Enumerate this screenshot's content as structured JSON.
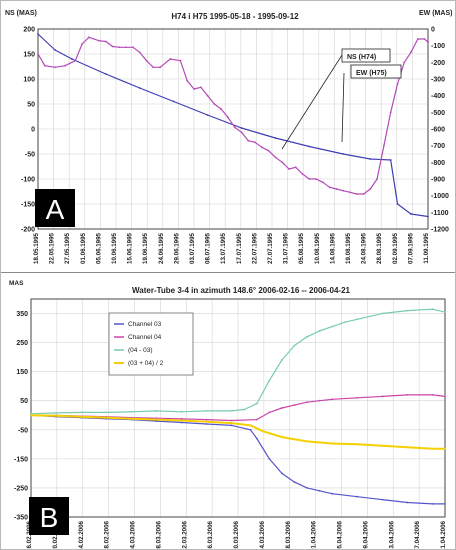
{
  "chart_data": [
    {
      "type": "line",
      "panel_label": "A",
      "title": "H74 i H75    1995-05-18 - 1995-09-12",
      "y_label": "NS (MAS)",
      "y2_label": "EW (MAS)",
      "ylim": [
        -200,
        200
      ],
      "y2lim": [
        -1200,
        0
      ],
      "y_ticks": [
        -200,
        -150,
        -100,
        -50,
        0,
        50,
        100,
        150,
        200
      ],
      "y2_ticks": [
        -1200,
        -1100,
        -1000,
        -900,
        -800,
        -700,
        -600,
        -500,
        -400,
        -300,
        -200,
        -100,
        0
      ],
      "x_ticks": [
        "18.05.1995",
        "22.05.1995",
        "27.05.1995",
        "01.06.1995",
        "05.06.1995",
        "10.06.1995",
        "15.06.1995",
        "19.06.1995",
        "24.06.1995",
        "29.06.1995",
        "03.07.1995",
        "08.07.1995",
        "13.07.1995",
        "17.07.1995",
        "22.07.1995",
        "27.07.1995",
        "31.07.1995",
        "05.08.1995",
        "10.08.1995",
        "14.08.1995",
        "19.08.1995",
        "24.08.1995",
        "28.08.1995",
        "02.09.1995",
        "07.09.1995",
        "11.09.1995"
      ],
      "grid": true,
      "series": [
        {
          "name": "NS (H74)",
          "axis": "left",
          "color": "#3f3fb4",
          "x": [
            0,
            5,
            10,
            20,
            30,
            40,
            50,
            60,
            70,
            80,
            90,
            98,
            104,
            106,
            110,
            115
          ],
          "y": [
            190,
            158,
            140,
            110,
            82,
            55,
            28,
            2,
            -18,
            -35,
            -50,
            -60,
            -62,
            -150,
            -170,
            -175
          ]
        },
        {
          "name": "EW (H75)",
          "axis": "right",
          "color": "#b54ab8",
          "x": [
            0,
            2,
            5,
            8,
            11,
            13,
            15,
            18,
            20,
            22,
            24,
            26,
            28,
            30,
            32,
            34,
            36,
            39,
            42,
            44,
            46,
            48,
            50,
            52,
            54,
            56,
            58,
            60,
            62,
            64,
            66,
            68,
            70,
            72,
            74,
            76,
            78,
            80,
            82,
            84,
            86,
            88,
            90,
            92,
            94,
            96,
            98,
            100,
            102,
            104,
            106,
            108,
            110,
            112,
            114,
            115
          ],
          "y": [
            -150,
            -220,
            -230,
            -220,
            -190,
            -90,
            -50,
            -70,
            -75,
            -105,
            -110,
            -110,
            -110,
            -140,
            -190,
            -230,
            -230,
            -180,
            -190,
            -310,
            -360,
            -350,
            -400,
            -450,
            -480,
            -530,
            -590,
            -620,
            -670,
            -680,
            -710,
            -730,
            -770,
            -800,
            -840,
            -830,
            -870,
            -900,
            -900,
            -920,
            -950,
            -960,
            -970,
            -980,
            -990,
            -990,
            -960,
            -900,
            -700,
            -500,
            -330,
            -200,
            -140,
            -60,
            -60,
            -80
          ]
        }
      ],
      "annotations": [
        "NS (H74)",
        "EW (H75)"
      ]
    },
    {
      "type": "line",
      "panel_label": "B",
      "title": "Water-Tube 3-4 in azimuth 148.6°        2006-02-16 -- 2006-04-21",
      "y_label": "MAS",
      "ylim": [
        -350,
        400
      ],
      "y_ticks": [
        -350,
        -250,
        -150,
        -50,
        50,
        150,
        250,
        350
      ],
      "x_ticks": [
        "16.02.2006",
        "20.02.2006",
        "24.02.2006",
        "28.02.2006",
        "04.03.2006",
        "08.03.2006",
        "12.03.2006",
        "16.03.2006",
        "20.03.2006",
        "24.03.2006",
        "28.03.2006",
        "01.04.2006",
        "05.04.2006",
        "09.04.2006",
        "13.04.2006",
        "17.04.2006",
        "21.04.2006"
      ],
      "grid": true,
      "legend_position": "upper-left",
      "series": [
        {
          "name": "Channel 03",
          "color": "#5555cc",
          "x": [
            0,
            4,
            8,
            12,
            16,
            20,
            24,
            28,
            32,
            35,
            36,
            38,
            40,
            42,
            44,
            46,
            48,
            52,
            56,
            60,
            64,
            66
          ],
          "y": [
            0,
            -5,
            -8,
            -12,
            -15,
            -20,
            -25,
            -30,
            -35,
            -50,
            -80,
            -150,
            -200,
            -230,
            -250,
            -260,
            -270,
            -280,
            -290,
            -300,
            -305,
            -305
          ]
        },
        {
          "name": "Channel 04",
          "color": "#cc44aa",
          "x": [
            0,
            4,
            8,
            12,
            16,
            20,
            24,
            28,
            32,
            36,
            38,
            40,
            42,
            44,
            46,
            48,
            52,
            56,
            60,
            64,
            66
          ],
          "y": [
            0,
            0,
            -3,
            -5,
            -8,
            -10,
            -12,
            -15,
            -18,
            -15,
            10,
            25,
            35,
            45,
            50,
            55,
            60,
            65,
            70,
            70,
            65
          ]
        },
        {
          "name": "(04 - 03)",
          "color": "#77ccaa",
          "x": [
            0,
            4,
            8,
            12,
            16,
            20,
            24,
            28,
            32,
            34,
            36,
            38,
            40,
            42,
            44,
            46,
            48,
            50,
            52,
            56,
            60,
            64,
            66
          ],
          "y": [
            5,
            8,
            10,
            10,
            12,
            15,
            12,
            15,
            15,
            20,
            40,
            120,
            190,
            240,
            270,
            290,
            305,
            320,
            330,
            350,
            360,
            365,
            355
          ]
        },
        {
          "name": "(03 + 04) / 2",
          "color": "#f4d000",
          "x": [
            0,
            4,
            8,
            12,
            16,
            20,
            24,
            28,
            32,
            35,
            37,
            40,
            44,
            48,
            52,
            56,
            60,
            64,
            66
          ],
          "y": [
            0,
            -2,
            -5,
            -8,
            -12,
            -15,
            -18,
            -22,
            -27,
            -35,
            -55,
            -75,
            -90,
            -97,
            -100,
            -105,
            -110,
            -115,
            -115
          ]
        }
      ]
    }
  ]
}
